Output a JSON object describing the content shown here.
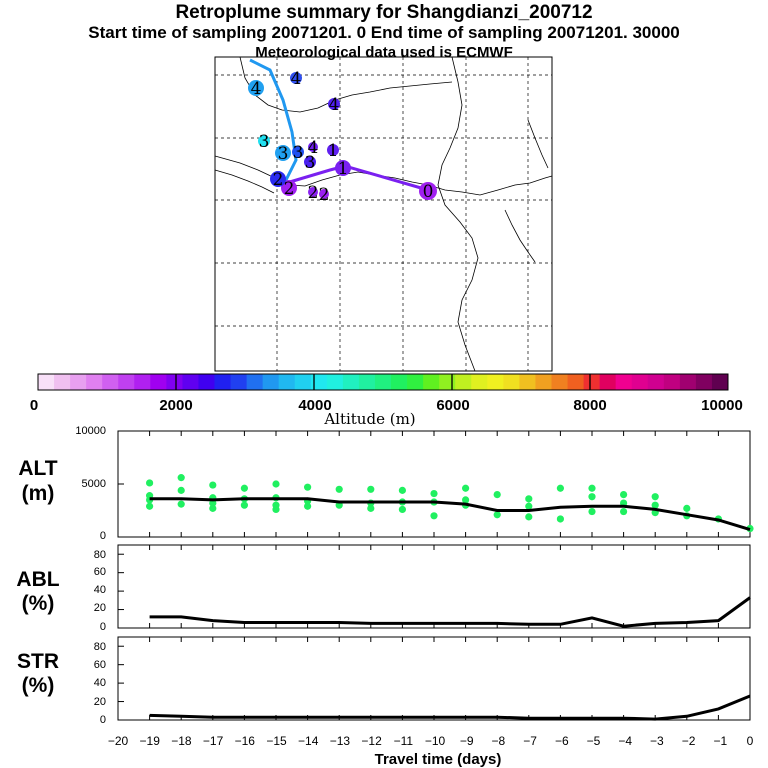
{
  "title_line1": "Retroplume summary for Shangdianzi_200712",
  "title_line2": "Start time of sampling 20071201.     0     End time of sampling 20071201. 30000",
  "title_line3": "Meteorological data used is ECMWF",
  "map": {
    "points": [
      {
        "label": "0",
        "color": "#a020f0"
      },
      {
        "label": "1",
        "color": "#7a20f0"
      },
      {
        "label": "1",
        "color": "#6020f0"
      },
      {
        "label": "2",
        "color": "#8a20f0"
      },
      {
        "label": "2",
        "color": "#9a20f0"
      },
      {
        "label": "2",
        "color": "#a020f0"
      },
      {
        "label": "2",
        "color": "#2a2af0"
      },
      {
        "label": "3",
        "color": "#20a0f0"
      },
      {
        "label": "3",
        "color": "#20e0f0"
      },
      {
        "label": "3",
        "color": "#4a20f0"
      },
      {
        "label": "3",
        "color": "#2050f0"
      },
      {
        "label": "4",
        "color": "#20a0f0"
      },
      {
        "label": "4",
        "color": "#3050f0"
      },
      {
        "label": "4",
        "color": "#5020f0"
      },
      {
        "label": "4",
        "color": "#7020f0"
      }
    ]
  },
  "colorbar": {
    "ticks": [
      "0",
      "2000",
      "4000",
      "6000",
      "8000",
      "10000"
    ],
    "label": "Altitude (m)",
    "colors": [
      "#f8e0f8",
      "#f0c0f0",
      "#e8a0f0",
      "#e080f0",
      "#d060f0",
      "#c040f0",
      "#b020f0",
      "#a000f0",
      "#8000f0",
      "#6000f0",
      "#4000f0",
      "#2020f0",
      "#2040f0",
      "#2070f0",
      "#2098f0",
      "#20b8f0",
      "#20d0f0",
      "#20e8f0",
      "#20f0e0",
      "#20f0c0",
      "#20f0a0",
      "#20f080",
      "#20f060",
      "#30f040",
      "#60f020",
      "#90f020",
      "#c0f020",
      "#e0f020",
      "#f0f020",
      "#f0e020",
      "#f0c020",
      "#f0a020",
      "#f08020",
      "#f06020",
      "#f03030",
      "#e00060",
      "#f00090",
      "#e00090",
      "#d00090",
      "#c00080",
      "#a00070",
      "#800060",
      "#600050"
    ]
  },
  "chart_data": [
    {
      "type": "line",
      "panel": "ALT",
      "ylabel": "ALT\n(m)",
      "ylabel_line1": "ALT",
      "ylabel_line2": "(m)",
      "xlabel": "Travel time (days)",
      "xlim": [
        -20,
        0
      ],
      "ylim": [
        0,
        10000
      ],
      "yticks": [
        "10000",
        "5000",
        "0"
      ],
      "x": [
        -19,
        -18,
        -17,
        -16,
        -15,
        -14,
        -13,
        -12,
        -11,
        -10,
        -9,
        -8,
        -7,
        -6,
        -5,
        -4,
        -3,
        -2,
        -1,
        0
      ],
      "values": [
        3600,
        3600,
        3500,
        3600,
        3600,
        3600,
        3300,
        3300,
        3300,
        3300,
        3100,
        2500,
        2500,
        2800,
        2900,
        2900,
        2600,
        2100,
        1600,
        700
      ],
      "scatter_points": [
        [
          -19,
          5100
        ],
        [
          -19,
          3900
        ],
        [
          -19,
          3500
        ],
        [
          -19,
          2900
        ],
        [
          -18,
          5600
        ],
        [
          -18,
          4400
        ],
        [
          -18,
          3100
        ],
        [
          -17,
          4900
        ],
        [
          -17,
          3700
        ],
        [
          -17,
          3200
        ],
        [
          -17,
          2700
        ],
        [
          -16,
          4600
        ],
        [
          -16,
          3600
        ],
        [
          -16,
          3000
        ],
        [
          -15,
          5000
        ],
        [
          -15,
          3700
        ],
        [
          -15,
          3000
        ],
        [
          -15,
          2600
        ],
        [
          -14,
          4700
        ],
        [
          -14,
          3400
        ],
        [
          -14,
          2900
        ],
        [
          -13,
          4500
        ],
        [
          -13,
          3000
        ],
        [
          -12,
          4500
        ],
        [
          -12,
          3200
        ],
        [
          -12,
          2700
        ],
        [
          -11,
          4400
        ],
        [
          -11,
          3300
        ],
        [
          -11,
          2600
        ],
        [
          -10,
          4100
        ],
        [
          -10,
          3300
        ],
        [
          -10,
          2000
        ],
        [
          -9,
          4600
        ],
        [
          -9,
          3500
        ],
        [
          -9,
          3000
        ],
        [
          -8,
          4000
        ],
        [
          -8,
          2100
        ],
        [
          -7,
          3600
        ],
        [
          -7,
          2900
        ],
        [
          -7,
          1900
        ],
        [
          -6,
          4600
        ],
        [
          -6,
          1700
        ],
        [
          -5,
          4600
        ],
        [
          -5,
          3800
        ],
        [
          -5,
          2400
        ],
        [
          -4,
          4000
        ],
        [
          -4,
          3200
        ],
        [
          -4,
          2400
        ],
        [
          -3,
          3800
        ],
        [
          -3,
          3000
        ],
        [
          -3,
          2300
        ],
        [
          -2,
          2700
        ],
        [
          -2,
          2000
        ],
        [
          -1,
          1700
        ],
        [
          0,
          800
        ]
      ]
    },
    {
      "type": "line",
      "panel": "ABL",
      "ylabel": "ABL\n(%)",
      "ylabel_line1": "ABL",
      "ylabel_line2": "(%)",
      "xlim": [
        -20,
        0
      ],
      "ylim": [
        0,
        90
      ],
      "yticks": [
        "80",
        "60",
        "40",
        "20",
        "0"
      ],
      "x": [
        -19,
        -18,
        -17,
        -16,
        -15,
        -14,
        -13,
        -12,
        -11,
        -10,
        -9,
        -8,
        -7,
        -6,
        -5,
        -4,
        -3,
        -2,
        -1,
        0
      ],
      "values": [
        12,
        12,
        8,
        6,
        6,
        6,
        6,
        5,
        5,
        5,
        5,
        5,
        4,
        4,
        11,
        2,
        5,
        6,
        8,
        33
      ]
    },
    {
      "type": "line",
      "panel": "STR",
      "ylabel": "STR\n(%)",
      "ylabel_line1": "STR",
      "ylabel_line2": "(%)",
      "xlim": [
        -20,
        0
      ],
      "ylim": [
        0,
        90
      ],
      "yticks": [
        "80",
        "60",
        "40",
        "20",
        "0"
      ],
      "xticks": [
        "−20",
        "−19",
        "−18",
        "−17",
        "−16",
        "−15",
        "−14",
        "−13",
        "−12",
        "−11",
        "−10",
        "−9",
        "−8",
        "−7",
        "−6",
        "−5",
        "−4",
        "−3",
        "−2",
        "−1",
        "0"
      ],
      "x": [
        -19,
        -18,
        -17,
        -16,
        -15,
        -14,
        -13,
        -12,
        -11,
        -10,
        -9,
        -8,
        -7,
        -6,
        -5,
        -4,
        -3,
        -2,
        -1,
        0
      ],
      "values": [
        5,
        4,
        3,
        3,
        3,
        3,
        3,
        3,
        3,
        3,
        3,
        3,
        2,
        2,
        2,
        2,
        1,
        4,
        12,
        26
      ]
    }
  ]
}
